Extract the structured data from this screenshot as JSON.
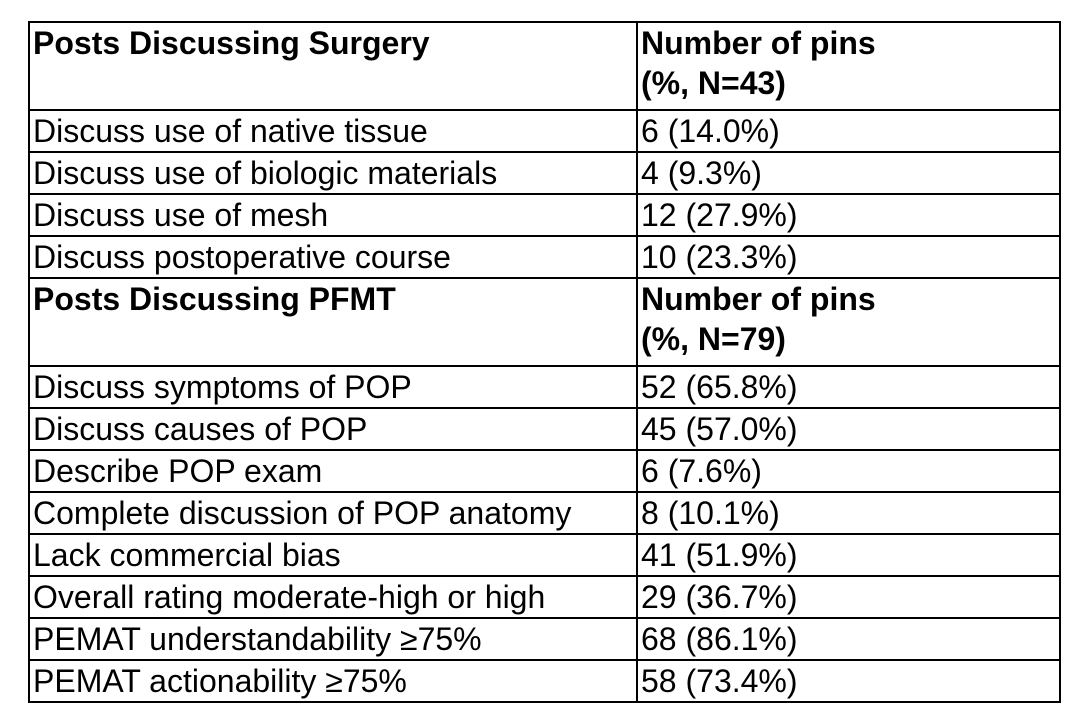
{
  "sections": [
    {
      "header": {
        "label": "Posts Discussing Surgery",
        "value_line1": "Number of pins",
        "value_line2": "(%, N=43)"
      },
      "rows": [
        {
          "label": "Discuss use of native tissue",
          "value": "6 (14.0%)"
        },
        {
          "label": "Discuss use of biologic materials",
          "value": "4 (9.3%)"
        },
        {
          "label": "Discuss use of mesh",
          "value": "12 (27.9%)"
        },
        {
          "label": "Discuss postoperative course",
          "value": "10 (23.3%)"
        }
      ]
    },
    {
      "header": {
        "label": "Posts Discussing PFMT",
        "value_line1": "Number of pins",
        "value_line2": "(%, N=79)"
      },
      "rows": [
        {
          "label": "Discuss symptoms of POP",
          "value": "52 (65.8%)"
        },
        {
          "label": "Discuss causes of POP",
          "value": "45 (57.0%)"
        },
        {
          "label": "Describe POP exam",
          "value": "6 (7.6%)"
        },
        {
          "label": "Complete discussion of POP anatomy",
          "value": "8 (10.1%)"
        },
        {
          "label": "Lack commercial bias",
          "value": "41 (51.9%)"
        },
        {
          "label": "Overall rating moderate-high or high",
          "value": "29 (36.7%)"
        },
        {
          "label": "PEMAT understandability ≥75%",
          "value": "68 (86.1%)"
        },
        {
          "label": "PEMAT actionability ≥75%",
          "value": "58 (73.4%)"
        }
      ]
    }
  ]
}
